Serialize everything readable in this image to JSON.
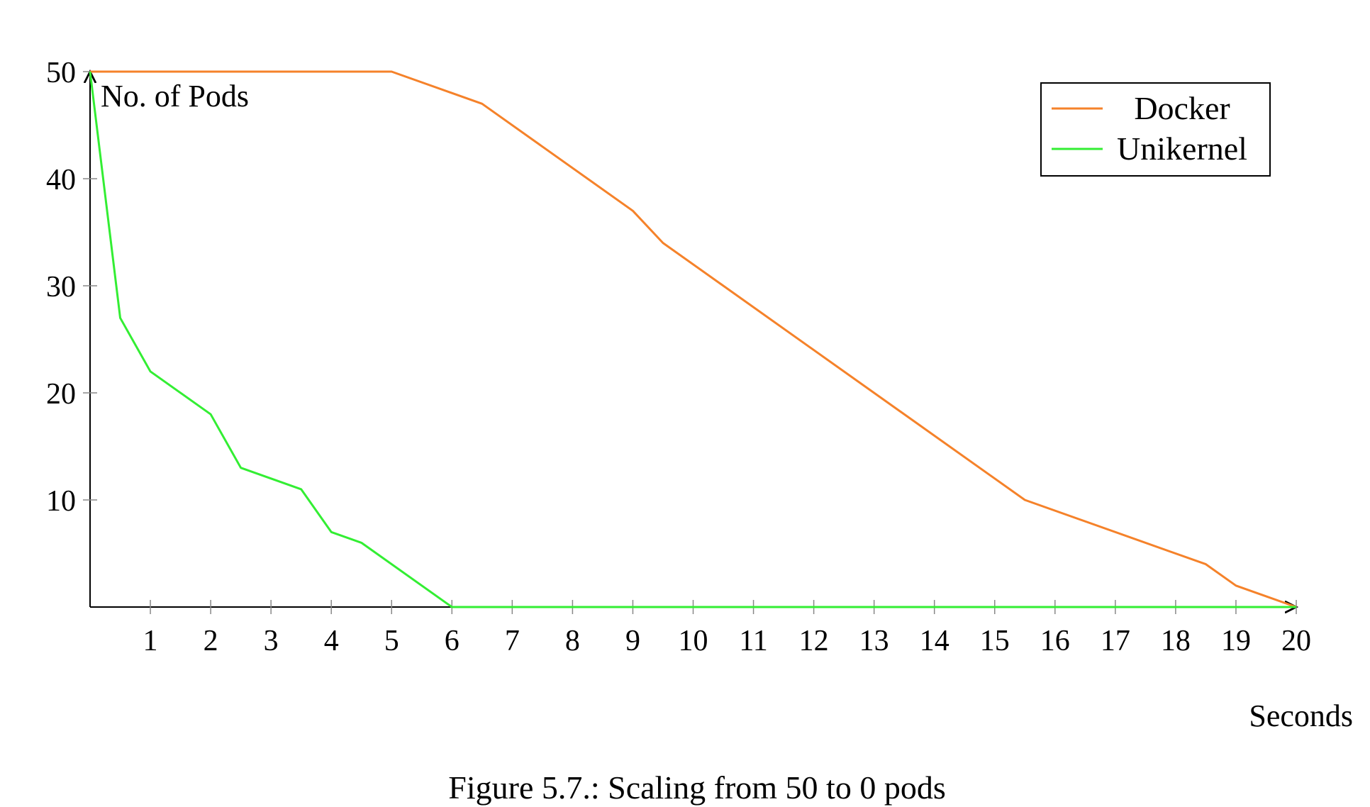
{
  "chart_data": {
    "type": "line",
    "xlabel": "Seconds",
    "ylabel": "No. of Pods",
    "xlim": [
      0,
      20
    ],
    "ylim": [
      0,
      50
    ],
    "x_ticks": [
      1,
      2,
      3,
      4,
      5,
      6,
      7,
      8,
      9,
      10,
      11,
      12,
      13,
      14,
      15,
      16,
      17,
      18,
      19,
      20
    ],
    "y_ticks": [
      10,
      20,
      30,
      40,
      50
    ],
    "grid": false,
    "legend_position": "top-right",
    "series": [
      {
        "name": "Docker",
        "color": "#f5822a",
        "points": [
          [
            0,
            50
          ],
          [
            5,
            50
          ],
          [
            6.5,
            47
          ],
          [
            9,
            37
          ],
          [
            9.5,
            34
          ],
          [
            15.5,
            10
          ],
          [
            18.5,
            4
          ],
          [
            19,
            2
          ],
          [
            20,
            0
          ]
        ]
      },
      {
        "name": "Unikernel",
        "color": "#33ee33",
        "points": [
          [
            0,
            50
          ],
          [
            0.5,
            27
          ],
          [
            1,
            22
          ],
          [
            2,
            18
          ],
          [
            2.5,
            13
          ],
          [
            3.5,
            11
          ],
          [
            4,
            7
          ],
          [
            4.5,
            6
          ],
          [
            6,
            0
          ],
          [
            20,
            0
          ]
        ]
      }
    ]
  },
  "caption": "Figure 5.7.: Scaling from 50 to 0 pods"
}
